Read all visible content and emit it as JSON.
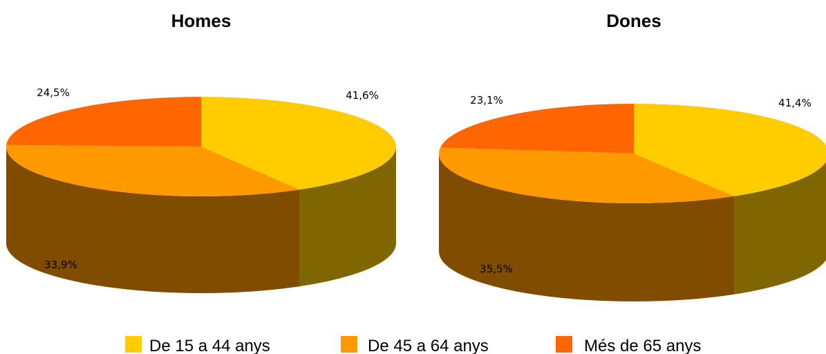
{
  "chart_data": [
    {
      "type": "pie",
      "title": "Homes",
      "categories": [
        "De 15 a 44 anys",
        "De 45 a 64 anys",
        "Més de 65 anys"
      ],
      "values": [
        41.6,
        33.9,
        24.5
      ],
      "data_labels": [
        "41,6%",
        "33,9%",
        "24,5%"
      ],
      "style": "3d"
    },
    {
      "type": "pie",
      "title": "Dones",
      "categories": [
        "De 15 a 44 anys",
        "De 45 a 64 anys",
        "Més de 65 anys"
      ],
      "values": [
        41.4,
        35.5,
        23.1
      ],
      "data_labels": [
        "41,4%",
        "35,5%",
        "23,1%"
      ],
      "style": "3d"
    }
  ],
  "legend": {
    "placement": "bottom",
    "items": [
      {
        "label": "De 15 a 44 anys",
        "color": "#FFCC00"
      },
      {
        "label": "De 45 a 64 anys",
        "color": "#FF9900"
      },
      {
        "label": "Més de 65 anys",
        "color": "#FF6600"
      }
    ]
  },
  "colors": {
    "top": [
      "#FFCC00",
      "#FF9900",
      "#FF6600"
    ],
    "side": [
      "#806600",
      "#804D00",
      "#803300"
    ]
  }
}
